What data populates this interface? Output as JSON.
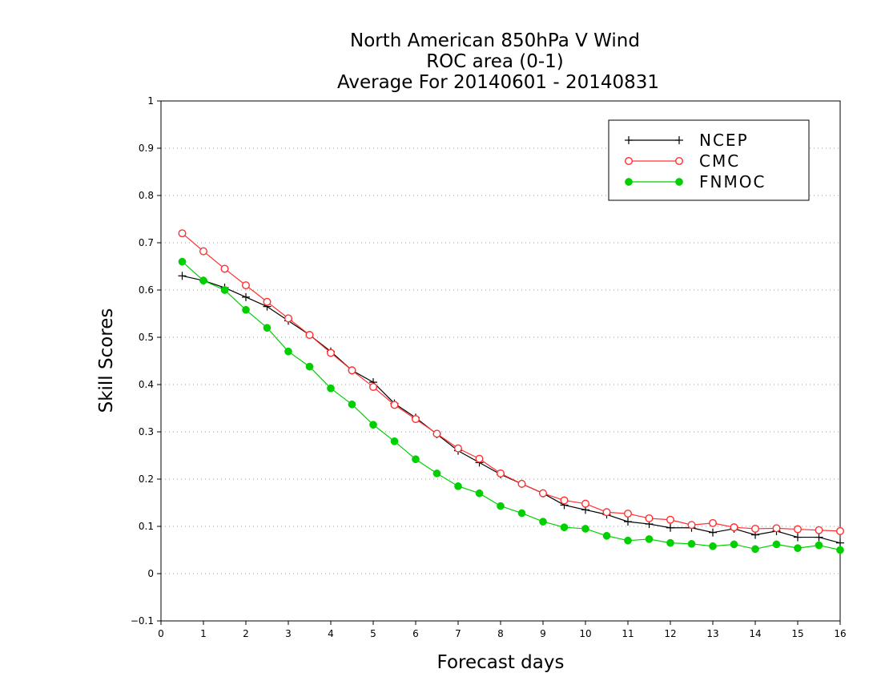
{
  "chart_data": {
    "type": "line",
    "title": [
      "North American 850hPa V Wind",
      "ROC area (0-1)",
      "Average For 20140601 - 20140831"
    ],
    "xlabel": "Forecast days",
    "ylabel": "Skill Scores",
    "xlim": [
      0,
      16
    ],
    "ylim": [
      -0.1,
      1
    ],
    "x_ticks": [
      0,
      1,
      2,
      3,
      4,
      5,
      6,
      7,
      8,
      9,
      10,
      11,
      12,
      13,
      14,
      15,
      16
    ],
    "x_tick_labels": [
      "0",
      "1",
      "2",
      "3",
      "4",
      "5",
      "6",
      "7",
      "8",
      "9",
      "10",
      "11",
      "12",
      "13",
      "14",
      "15",
      "16"
    ],
    "y_ticks": [
      -0.1,
      0,
      0.1,
      0.2,
      0.3,
      0.4,
      0.5,
      0.6,
      0.7,
      0.8,
      0.9,
      1
    ],
    "y_tick_labels": [
      "−0.1",
      "0",
      "0.1",
      "0.2",
      "0.3",
      "0.4",
      "0.5",
      "0.6",
      "0.7",
      "0.8",
      "0.9",
      "1"
    ],
    "grid": "horizontal dotted",
    "legend_position": "top-right",
    "x": [
      0.5,
      1,
      1.5,
      2,
      2.5,
      3,
      3.5,
      4,
      4.5,
      5,
      5.5,
      6,
      6.5,
      7,
      7.5,
      8,
      8.5,
      9,
      9.5,
      10,
      10.5,
      11,
      11.5,
      12,
      12.5,
      13,
      13.5,
      14,
      14.5,
      15,
      15.5,
      16
    ],
    "series": [
      {
        "name": "NCEP",
        "color": "#000000",
        "marker": "plus",
        "values": [
          0.63,
          0.62,
          0.605,
          0.585,
          0.565,
          0.535,
          0.505,
          0.47,
          0.43,
          0.405,
          0.36,
          0.33,
          0.295,
          0.26,
          0.235,
          0.21,
          0.19,
          0.17,
          0.145,
          0.135,
          0.125,
          0.11,
          0.105,
          0.097,
          0.097,
          0.087,
          0.095,
          0.082,
          0.09,
          0.077,
          0.077,
          0.065
        ]
      },
      {
        "name": "CMC",
        "color": "#ff3030",
        "marker": "open-circle",
        "values": [
          0.72,
          0.682,
          0.645,
          0.61,
          0.575,
          0.54,
          0.505,
          0.467,
          0.43,
          0.395,
          0.357,
          0.327,
          0.296,
          0.265,
          0.243,
          0.212,
          0.19,
          0.17,
          0.155,
          0.148,
          0.13,
          0.127,
          0.117,
          0.114,
          0.103,
          0.107,
          0.098,
          0.095,
          0.096,
          0.094,
          0.092,
          0.09
        ]
      },
      {
        "name": "FNMOC",
        "color": "#00d000",
        "marker": "filled-circle",
        "values": [
          0.66,
          0.62,
          0.6,
          0.558,
          0.52,
          0.47,
          0.438,
          0.392,
          0.358,
          0.315,
          0.28,
          0.242,
          0.212,
          0.185,
          0.17,
          0.143,
          0.128,
          0.11,
          0.098,
          0.095,
          0.08,
          0.07,
          0.073,
          0.065,
          0.063,
          0.058,
          0.062,
          0.052,
          0.062,
          0.054,
          0.06,
          0.05
        ]
      }
    ]
  }
}
